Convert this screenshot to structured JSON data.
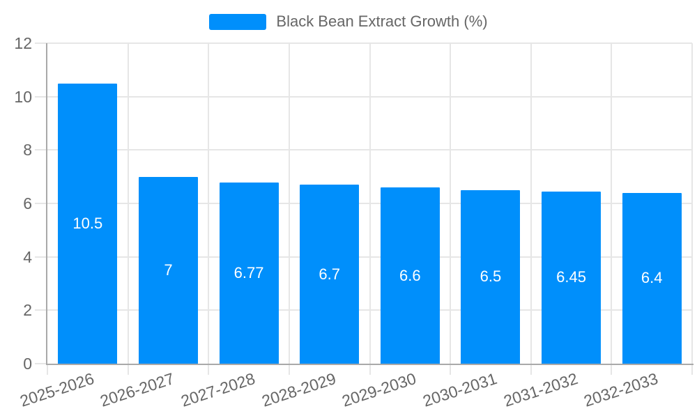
{
  "colors": {
    "bar": "#008ffb",
    "grid": "#e6e6e6",
    "axis": "#a9a9a9",
    "label": "#666666",
    "value_label": "#ffffff"
  },
  "chart_data": {
    "type": "bar",
    "categories": [
      "2025-2026",
      "2026-2027",
      "2027-2028",
      "2028-2029",
      "2029-2030",
      "2030-2031",
      "2031-2032",
      "2032-2033"
    ],
    "values": [
      10.5,
      7,
      6.77,
      6.7,
      6.6,
      6.5,
      6.45,
      6.4
    ],
    "title": "",
    "legend": "Black Bean Extract Growth (%)",
    "legend_position": "top",
    "xlabel": "",
    "ylabel": "",
    "ylim": [
      0,
      12
    ],
    "yticks": [
      0,
      2,
      4,
      6,
      8,
      10,
      12
    ],
    "grid": true,
    "bar_label_position": "inside-center",
    "x_label_rotation_deg": -18
  }
}
